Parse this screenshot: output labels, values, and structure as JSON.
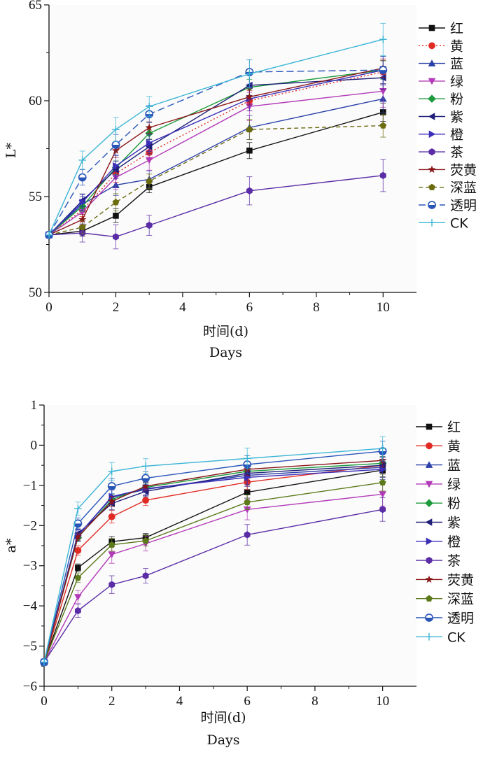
{
  "chart_data": [
    {
      "type": "line",
      "panel": "top",
      "title": "",
      "xlabel": "时间(d)",
      "xlabel_en": "Days",
      "ylabel": "L*",
      "xlim": [
        0,
        11
      ],
      "ylim": [
        50,
        65
      ],
      "xticks": [
        0,
        2,
        4,
        6,
        8,
        10
      ],
      "yticks": [
        50,
        55,
        60,
        65
      ],
      "x": [
        0,
        1,
        2,
        3,
        6,
        10
      ],
      "legend_position": "right",
      "series": [
        {
          "name": "红",
          "color": "#111111",
          "marker": "square",
          "dash": "",
          "values": [
            53.0,
            53.2,
            54.0,
            55.5,
            57.4,
            59.4
          ]
        },
        {
          "name": "黄",
          "color": "#e02b24",
          "marker": "circle",
          "dash": "2,3",
          "values": [
            53.0,
            54.3,
            56.2,
            57.3,
            60.0,
            61.5
          ]
        },
        {
          "name": "蓝",
          "color": "#2a3fa8",
          "marker": "triangle-up",
          "dash": "",
          "values": [
            53.0,
            54.6,
            55.6,
            55.9,
            58.6,
            60.1
          ]
        },
        {
          "name": "绿",
          "color": "#b23ab8",
          "marker": "triangle-down",
          "dash": "",
          "values": [
            53.0,
            54.2,
            56.0,
            56.9,
            59.7,
            60.5
          ]
        },
        {
          "name": "粉",
          "color": "#1c9a3c",
          "marker": "diamond",
          "dash": "",
          "values": [
            53.0,
            54.5,
            56.5,
            58.3,
            60.7,
            61.6
          ]
        },
        {
          "name": "紫",
          "color": "#20207a",
          "marker": "triangle-left",
          "dash": "",
          "values": [
            53.0,
            54.8,
            56.4,
            57.6,
            60.8,
            61.2
          ]
        },
        {
          "name": "橙",
          "color": "#3b2fb8",
          "marker": "triangle-right",
          "dash": "",
          "values": [
            53.0,
            54.7,
            56.6,
            57.8,
            60.1,
            61.6
          ]
        },
        {
          "name": "茶",
          "color": "#5a2ca6",
          "marker": "hexagon",
          "dash": "",
          "values": [
            53.0,
            53.1,
            52.9,
            53.5,
            55.3,
            56.1
          ]
        },
        {
          "name": "荧黄",
          "color": "#8a1518",
          "marker": "star",
          "dash": "",
          "values": [
            53.0,
            53.8,
            57.4,
            58.6,
            60.2,
            61.7
          ]
        },
        {
          "name": "深蓝",
          "color": "#6b6b10",
          "marker": "pentagon",
          "dash": "6,4",
          "values": [
            53.0,
            53.4,
            54.7,
            55.8,
            58.5,
            58.7
          ]
        },
        {
          "name": "透明",
          "color": "#2855b8",
          "marker": "circle-half",
          "dash": "10,5",
          "values": [
            53.0,
            56.0,
            57.7,
            59.3,
            61.5,
            61.6
          ]
        },
        {
          "name": "CK",
          "color": "#3bb5d6",
          "marker": "plus",
          "dash": "",
          "values": [
            53.0,
            56.9,
            58.5,
            59.7,
            61.4,
            63.2
          ]
        }
      ]
    },
    {
      "type": "line",
      "panel": "bottom",
      "title": "",
      "xlabel": "时间(d)",
      "xlabel_en": "Days",
      "ylabel": "a*",
      "xlim": [
        0,
        11
      ],
      "ylim": [
        -6,
        1
      ],
      "xticks": [
        0,
        2,
        4,
        6,
        8,
        10
      ],
      "yticks": [
        -6,
        -5,
        -4,
        -3,
        -2,
        -1,
        0,
        1
      ],
      "x": [
        0,
        1,
        2,
        3,
        6,
        10
      ],
      "legend_position": "right",
      "series": [
        {
          "name": "红",
          "color": "#111111",
          "marker": "square",
          "dash": "",
          "values": [
            -5.4,
            -3.05,
            -2.4,
            -2.3,
            -1.17,
            -0.62
          ]
        },
        {
          "name": "黄",
          "color": "#e02b24",
          "marker": "circle",
          "dash": "",
          "values": [
            -5.4,
            -2.62,
            -1.78,
            -1.37,
            -0.92,
            -0.5
          ]
        },
        {
          "name": "蓝",
          "color": "#2a3fa8",
          "marker": "triangle-up",
          "dash": "",
          "values": [
            -5.4,
            -2.25,
            -1.3,
            -1.1,
            -0.75,
            -0.55
          ]
        },
        {
          "name": "绿",
          "color": "#b23ab8",
          "marker": "triangle-down",
          "dash": "",
          "values": [
            -5.4,
            -3.78,
            -2.72,
            -2.45,
            -1.6,
            -1.22
          ]
        },
        {
          "name": "粉",
          "color": "#1c9a3c",
          "marker": "diamond",
          "dash": "",
          "values": [
            -5.4,
            -2.3,
            -1.35,
            -1.05,
            -0.65,
            -0.45
          ]
        },
        {
          "name": "紫",
          "color": "#20207a",
          "marker": "triangle-left",
          "dash": "",
          "values": [
            -5.4,
            -2.2,
            -1.45,
            -1.15,
            -0.7,
            -0.5
          ]
        },
        {
          "name": "橙",
          "color": "#3b2fb8",
          "marker": "triangle-right",
          "dash": "",
          "values": [
            -5.4,
            -2.25,
            -1.28,
            -1.08,
            -0.8,
            -0.6
          ]
        },
        {
          "name": "茶",
          "color": "#5a2ca6",
          "marker": "hexagon",
          "dash": "",
          "values": [
            -5.4,
            -4.12,
            -3.47,
            -3.25,
            -2.23,
            -1.6
          ]
        },
        {
          "name": "荧黄",
          "color": "#8a1518",
          "marker": "star",
          "dash": "",
          "values": [
            -5.4,
            -2.28,
            -1.4,
            -1.02,
            -0.6,
            -0.38
          ]
        },
        {
          "name": "深蓝",
          "color": "#5c7a1a",
          "marker": "pentagon",
          "dash": "",
          "values": [
            -5.4,
            -3.3,
            -2.48,
            -2.38,
            -1.42,
            -0.93
          ]
        },
        {
          "name": "透明",
          "color": "#2855b8",
          "marker": "circle-half",
          "dash": "",
          "values": [
            -5.4,
            -1.95,
            -1.02,
            -0.82,
            -0.48,
            -0.15
          ]
        },
        {
          "name": "CK",
          "color": "#3bb5d6",
          "marker": "plus",
          "dash": "",
          "values": [
            -5.4,
            -1.58,
            -0.65,
            -0.52,
            -0.33,
            -0.08
          ]
        }
      ]
    }
  ]
}
